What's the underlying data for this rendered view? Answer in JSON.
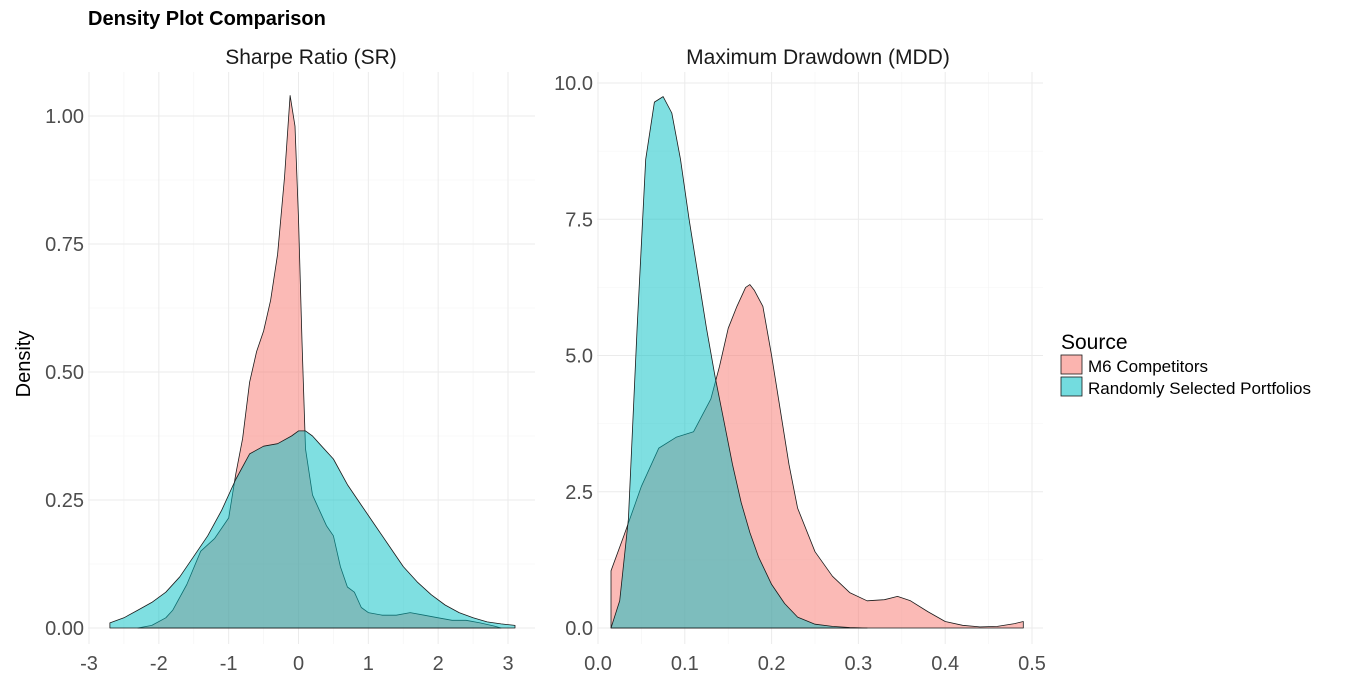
{
  "figure": {
    "title": "Density Plot Comparison",
    "ylabel": "Density",
    "legend": {
      "title": "Source",
      "placement": "right",
      "entries": [
        {
          "label": "M6 Competitors",
          "color": "#F8766D"
        },
        {
          "label": "Randomly Selected Portfolios",
          "color": "#00BFC4"
        }
      ]
    }
  },
  "chart_data": [
    {
      "type": "area",
      "title": "Sharpe Ratio (SR)",
      "xlabel": "",
      "ylabel": "Density",
      "xlim": [
        -3.0,
        3.2
      ],
      "ylim": [
        0,
        1.1
      ],
      "x_ticks": [
        "-3",
        "-2",
        "-1",
        "0",
        "1",
        "2",
        "3"
      ],
      "x_tick_values": [
        -3,
        -2,
        -1,
        0,
        1,
        2,
        3
      ],
      "y_ticks": [
        "0.00",
        "0.25",
        "0.50",
        "0.75",
        "1.00"
      ],
      "y_tick_values": [
        0,
        0.25,
        0.5,
        0.75,
        1.0
      ],
      "grid": true,
      "series": [
        {
          "name": "M6 Competitors",
          "color": "#F8766D",
          "x": [
            -2.3,
            -2.1,
            -1.9,
            -1.8,
            -1.6,
            -1.4,
            -1.2,
            -1.0,
            -0.9,
            -0.8,
            -0.7,
            -0.6,
            -0.5,
            -0.4,
            -0.3,
            -0.2,
            -0.12,
            -0.05,
            0.0,
            0.05,
            0.1,
            0.2,
            0.3,
            0.4,
            0.5,
            0.6,
            0.7,
            0.8,
            0.9,
            1.0,
            1.2,
            1.4,
            1.6,
            1.8,
            2.0,
            2.2,
            2.4,
            2.6,
            2.8,
            2.9
          ],
          "y": [
            0.0,
            0.005,
            0.02,
            0.035,
            0.085,
            0.15,
            0.175,
            0.215,
            0.3,
            0.37,
            0.48,
            0.54,
            0.58,
            0.64,
            0.73,
            0.88,
            1.04,
            0.98,
            0.8,
            0.56,
            0.35,
            0.26,
            0.23,
            0.2,
            0.18,
            0.12,
            0.08,
            0.07,
            0.04,
            0.03,
            0.025,
            0.025,
            0.03,
            0.025,
            0.02,
            0.015,
            0.015,
            0.01,
            0.004,
            0.0
          ]
        },
        {
          "name": "Randomly Selected Portfolios",
          "color": "#00BFC4",
          "x": [
            -2.7,
            -2.5,
            -2.3,
            -2.1,
            -1.9,
            -1.7,
            -1.5,
            -1.3,
            -1.1,
            -0.9,
            -0.7,
            -0.5,
            -0.3,
            -0.1,
            0.0,
            0.1,
            0.2,
            0.3,
            0.5,
            0.7,
            0.9,
            1.1,
            1.3,
            1.5,
            1.7,
            1.9,
            2.1,
            2.3,
            2.5,
            2.7,
            2.9,
            3.1
          ],
          "y": [
            0.01,
            0.02,
            0.035,
            0.05,
            0.07,
            0.1,
            0.14,
            0.18,
            0.23,
            0.29,
            0.34,
            0.355,
            0.36,
            0.375,
            0.385,
            0.385,
            0.375,
            0.36,
            0.33,
            0.28,
            0.24,
            0.2,
            0.16,
            0.12,
            0.09,
            0.065,
            0.045,
            0.03,
            0.02,
            0.012,
            0.008,
            0.005
          ]
        }
      ]
    },
    {
      "type": "area",
      "title": "Maximum Drawdown (MDD)",
      "xlabel": "",
      "ylabel": "",
      "xlim": [
        0.0,
        0.505
      ],
      "ylim": [
        0,
        10.3
      ],
      "x_ticks": [
        "0.0",
        "0.1",
        "0.2",
        "0.3",
        "0.4",
        "0.5"
      ],
      "x_tick_values": [
        0.0,
        0.1,
        0.2,
        0.3,
        0.4,
        0.5
      ],
      "y_ticks": [
        "0.0",
        "2.5",
        "5.0",
        "7.5",
        "10.0"
      ],
      "y_tick_values": [
        0,
        2.5,
        5.0,
        7.5,
        10.0
      ],
      "grid": true,
      "series": [
        {
          "name": "M6 Competitors",
          "color": "#F8766D",
          "x": [
            0.015,
            0.015,
            0.03,
            0.05,
            0.07,
            0.09,
            0.11,
            0.13,
            0.14,
            0.15,
            0.16,
            0.17,
            0.175,
            0.18,
            0.19,
            0.2,
            0.21,
            0.22,
            0.23,
            0.25,
            0.27,
            0.29,
            0.31,
            0.33,
            0.345,
            0.36,
            0.38,
            0.4,
            0.42,
            0.44,
            0.46,
            0.48,
            0.49,
            0.49
          ],
          "y": [
            0.0,
            1.05,
            1.7,
            2.6,
            3.3,
            3.5,
            3.6,
            4.2,
            4.8,
            5.5,
            5.9,
            6.25,
            6.3,
            6.2,
            5.9,
            5.0,
            4.0,
            3.0,
            2.2,
            1.4,
            0.95,
            0.65,
            0.5,
            0.52,
            0.58,
            0.5,
            0.3,
            0.12,
            0.05,
            0.02,
            0.03,
            0.08,
            0.12,
            0.0
          ]
        },
        {
          "name": "Randomly Selected Portfolios",
          "color": "#00BFC4",
          "x": [
            0.015,
            0.025,
            0.035,
            0.045,
            0.055,
            0.065,
            0.075,
            0.085,
            0.095,
            0.105,
            0.115,
            0.125,
            0.135,
            0.145,
            0.155,
            0.165,
            0.175,
            0.185,
            0.2,
            0.215,
            0.23,
            0.25,
            0.27,
            0.29,
            0.31
          ],
          "y": [
            0.0,
            0.5,
            2.0,
            5.5,
            8.6,
            9.65,
            9.75,
            9.45,
            8.6,
            7.5,
            6.5,
            5.5,
            4.6,
            3.8,
            3.0,
            2.3,
            1.75,
            1.3,
            0.8,
            0.45,
            0.2,
            0.07,
            0.03,
            0.01,
            0.0
          ]
        }
      ]
    }
  ]
}
